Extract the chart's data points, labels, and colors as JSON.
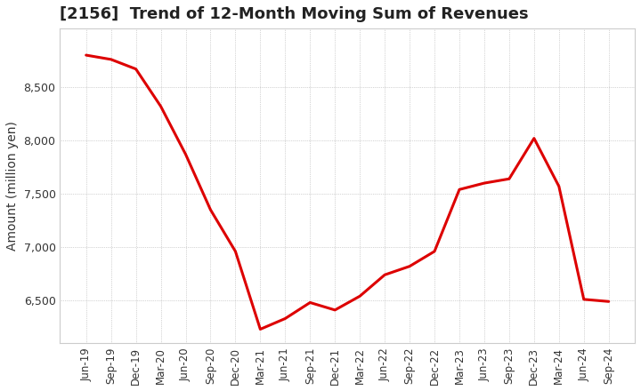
{
  "title": "[2156]  Trend of 12-Month Moving Sum of Revenues",
  "ylabel": "Amount (million yen)",
  "line_color": "#dd0000",
  "background_color": "#ffffff",
  "plot_bg_color": "#ffffff",
  "grid_color": "#999999",
  "x_labels": [
    "Jun-19",
    "Sep-19",
    "Dec-19",
    "Mar-20",
    "Jun-20",
    "Sep-20",
    "Dec-20",
    "Mar-21",
    "Jun-21",
    "Sep-21",
    "Dec-21",
    "Mar-22",
    "Jun-22",
    "Sep-22",
    "Dec-22",
    "Mar-23",
    "Jun-23",
    "Sep-23",
    "Dec-23",
    "Mar-24",
    "Jun-24",
    "Sep-24"
  ],
  "y_values": [
    8800,
    8760,
    8670,
    8320,
    7870,
    7350,
    6960,
    6230,
    6330,
    6480,
    6410,
    6540,
    6740,
    6820,
    6960,
    7540,
    7600,
    7640,
    8020,
    7570,
    6510,
    6490
  ],
  "ylim_min": 6100,
  "ylim_max": 9050,
  "yticks": [
    6500,
    7000,
    7500,
    8000,
    8500
  ],
  "title_fontsize": 13,
  "ylabel_fontsize": 10,
  "tick_fontsize": 8.5,
  "line_width": 2.2
}
